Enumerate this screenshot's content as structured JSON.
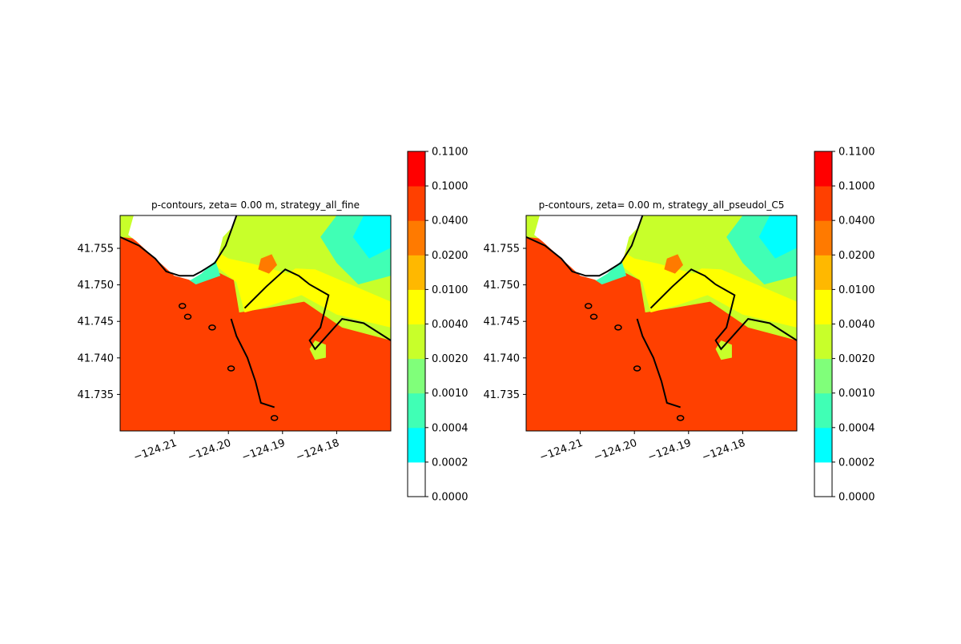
{
  "chart_data": [
    {
      "type": "heatmap",
      "title": "p-contours, zeta= 0.00 m, strategy_all_fine",
      "xlim": [
        -124.22,
        -124.17
      ],
      "ylim": [
        41.73,
        41.7595
      ],
      "x_ticks": [
        -124.21,
        -124.2,
        -124.19,
        -124.18
      ],
      "x_tick_labels": [
        "−124.21",
        "−124.20",
        "−124.19",
        "−124.18"
      ],
      "y_ticks": [
        41.735,
        41.74,
        41.745,
        41.75,
        41.755
      ],
      "y_tick_labels": [
        "41.735",
        "41.740",
        "41.745",
        "41.750",
        "41.755"
      ],
      "colorbar": {
        "levels": [
          "0.0000",
          "0.0002",
          "0.0004",
          "0.0010",
          "0.0020",
          "0.0040",
          "0.0100",
          "0.0200",
          "0.0400",
          "0.1000",
          "0.1100"
        ],
        "colors": [
          "#ffffff",
          "#00ffff",
          "#40ffb5",
          "#80ff7a",
          "#c8ff2a",
          "#ffff00",
          "#ffb800",
          "#ff7a00",
          "#ff4000",
          "#ff0000"
        ]
      },
      "grid": false,
      "legend": "none"
    },
    {
      "type": "heatmap",
      "title": "p-contours, zeta= 0.00 m, strategy_all_pseudol_C5",
      "xlim": [
        -124.22,
        -124.17
      ],
      "ylim": [
        41.73,
        41.7595
      ],
      "x_ticks": [
        -124.21,
        -124.2,
        -124.19,
        -124.18
      ],
      "x_tick_labels": [
        "−124.21",
        "−124.20",
        "−124.19",
        "−124.18"
      ],
      "y_ticks": [
        41.735,
        41.74,
        41.745,
        41.75,
        41.755
      ],
      "y_tick_labels": [
        "41.735",
        "41.740",
        "41.745",
        "41.750",
        "41.755"
      ],
      "colorbar": {
        "levels": [
          "0.0000",
          "0.0002",
          "0.0004",
          "0.0010",
          "0.0020",
          "0.0040",
          "0.0100",
          "0.0200",
          "0.0400",
          "0.1000",
          "0.1100"
        ],
        "colors": [
          "#ffffff",
          "#00ffff",
          "#40ffb5",
          "#80ff7a",
          "#c8ff2a",
          "#ffff00",
          "#ffb800",
          "#ff7a00",
          "#ff4000",
          "#ff0000"
        ]
      },
      "grid": false,
      "legend": "none"
    }
  ]
}
